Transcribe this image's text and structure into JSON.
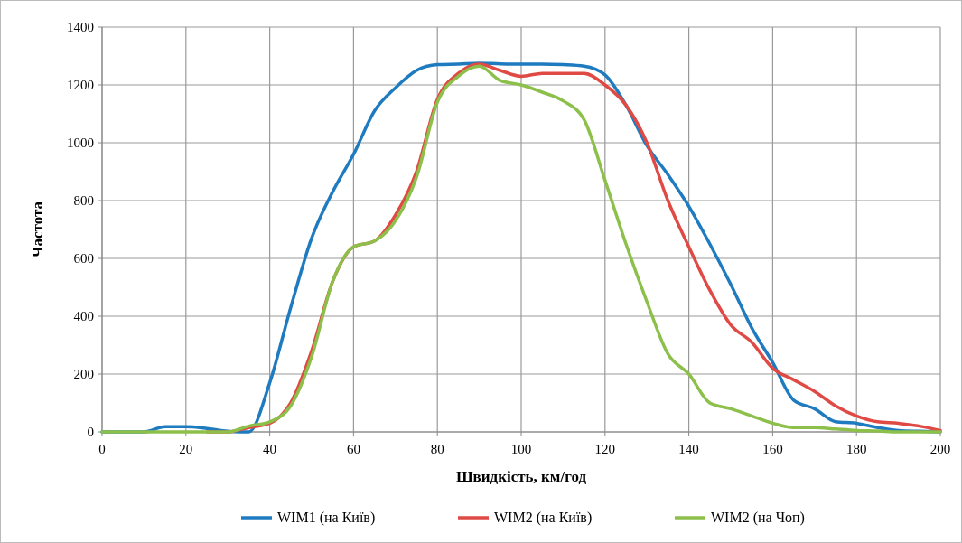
{
  "chart_data": {
    "type": "line",
    "xlabel": "Швидкість, км/год",
    "ylabel": "Частота",
    "x": [
      0,
      5,
      10,
      15,
      20,
      25,
      30,
      35,
      40,
      45,
      50,
      55,
      60,
      65,
      70,
      75,
      80,
      85,
      90,
      95,
      100,
      105,
      110,
      115,
      120,
      125,
      130,
      135,
      140,
      145,
      150,
      155,
      160,
      165,
      170,
      175,
      180,
      185,
      190,
      195,
      200
    ],
    "series": [
      {
        "name": "WIM1 (на Київ)",
        "color": "#1f7bc0",
        "values": [
          0,
          0,
          0,
          18,
          18,
          12,
          2,
          0,
          170,
          430,
          670,
          830,
          960,
          1110,
          1190,
          1250,
          1270,
          1272,
          1275,
          1273,
          1272,
          1272,
          1270,
          1265,
          1235,
          1130,
          990,
          890,
          780,
          650,
          510,
          360,
          240,
          110,
          80,
          35,
          30,
          15,
          5,
          2,
          0
        ]
      },
      {
        "name": "WIM2 (на Київ)",
        "color": "#e04a44",
        "values": [
          null,
          null,
          null,
          null,
          null,
          0,
          0,
          15,
          30,
          100,
          280,
          520,
          640,
          660,
          750,
          900,
          1150,
          1240,
          1272,
          1250,
          1230,
          1240,
          1240,
          1240,
          1200,
          1130,
          1000,
          800,
          640,
          490,
          370,
          310,
          220,
          180,
          140,
          90,
          55,
          35,
          30,
          20,
          5
        ]
      },
      {
        "name": "WIM2 (на Чоп)",
        "color": "#8cc04a",
        "values": [
          0,
          0,
          0,
          0,
          0,
          0,
          0,
          20,
          35,
          90,
          260,
          520,
          640,
          660,
          730,
          880,
          1140,
          1230,
          1265,
          1215,
          1200,
          1175,
          1145,
          1080,
          870,
          650,
          450,
          270,
          200,
          100,
          80,
          55,
          30,
          15,
          15,
          10,
          5,
          3,
          0,
          0,
          0
        ]
      }
    ],
    "xlim": [
      0,
      200
    ],
    "xticks": [
      0,
      20,
      40,
      60,
      80,
      100,
      120,
      140,
      160,
      180,
      200
    ],
    "ylim": [
      0,
      1400
    ],
    "yticks": [
      0,
      200,
      400,
      600,
      800,
      1000,
      1200,
      1400
    ],
    "grid": true,
    "legend": "bottom",
    "line_style": "solid",
    "marker": "none"
  }
}
